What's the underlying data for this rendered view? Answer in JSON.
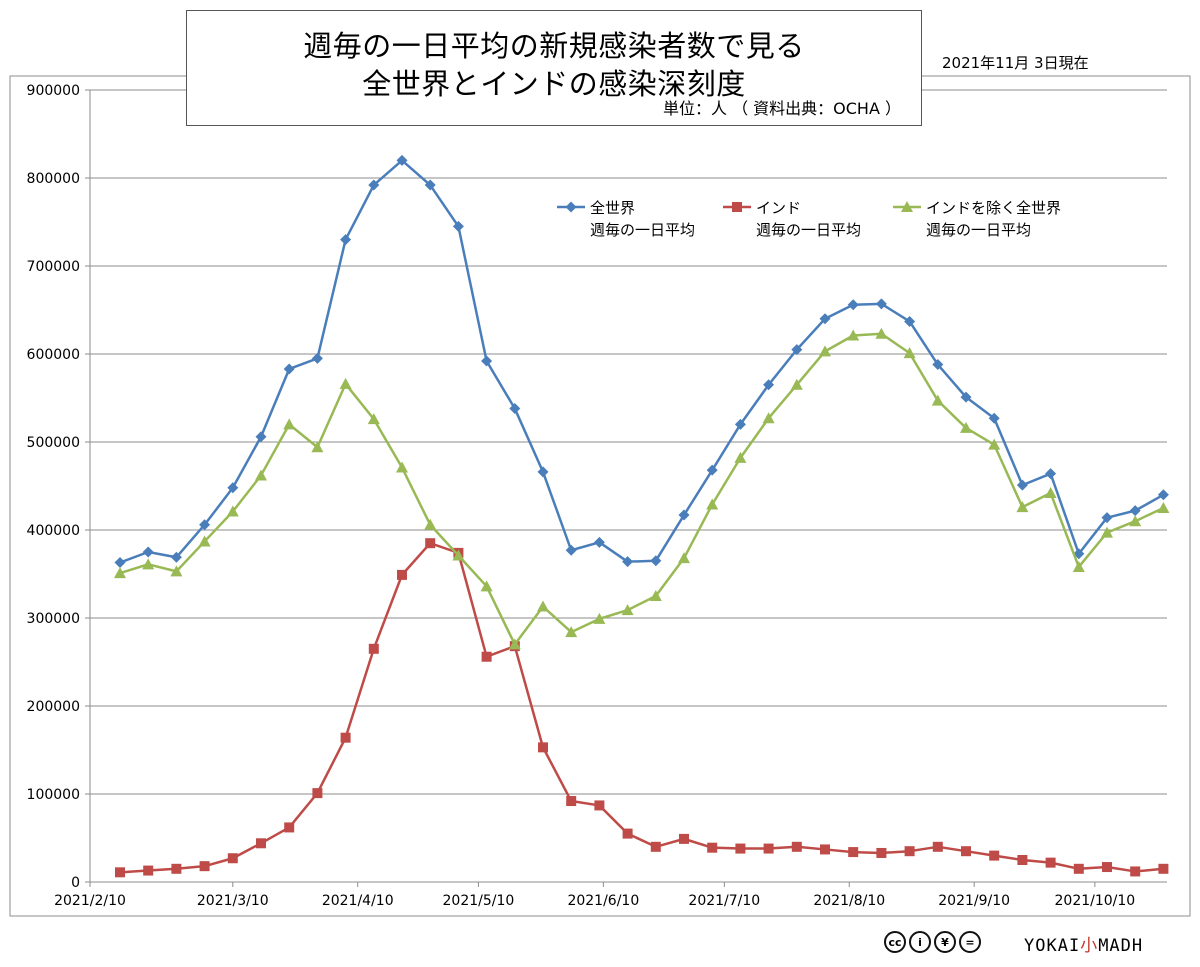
{
  "title": {
    "line1": "週毎の一日平均の新規感染者数で見る",
    "line2": "全世界とインドの感染深刻度",
    "unit": "単位：人 （ 資料出典：OCHA ）"
  },
  "date_note": "2021年11月 3日現在",
  "footer": {
    "license_icons": [
      "cc-icon",
      "by-icon",
      "nc-icon",
      "nd-icon"
    ],
    "license_glyphs": [
      "cc",
      "i",
      "¥",
      "="
    ],
    "brand_left": "YOKAI",
    "brand_mid": "小",
    "brand_right": "MADH"
  },
  "chart_data": {
    "type": "line",
    "x_start": "2021/2/10",
    "x_step_days": 7,
    "x_tick_labels": [
      "2021/2/10",
      "2021/3/10",
      "2021/4/10",
      "2021/5/10",
      "2021/6/10",
      "2021/7/10",
      "2021/8/10",
      "2021/9/10",
      "2021/10/10"
    ],
    "x_tick_index": [
      0,
      4,
      8.43,
      12.71,
      17.14,
      21.43,
      25.86,
      30.29,
      34.57
    ],
    "y_ticks": [
      0,
      100000,
      200000,
      300000,
      400000,
      500000,
      600000,
      700000,
      800000,
      900000
    ],
    "ylim": [
      0,
      900000
    ],
    "grid": true,
    "legend_placement": "top-right",
    "series": [
      {
        "name": "全世界",
        "name_sub": "週毎の一日平均",
        "color": "#4a7ebb",
        "marker": "diamond",
        "values": [
          363000,
          375000,
          369000,
          406000,
          448000,
          506000,
          583000,
          595000,
          730000,
          792000,
          820000,
          792000,
          745000,
          592000,
          538000,
          466000,
          377000,
          386000,
          364000,
          365000,
          417000,
          468000,
          520000,
          565000,
          605000,
          640000,
          656000,
          657000,
          637000,
          588000,
          551000,
          527000,
          451000,
          464000,
          373000,
          414000,
          422000,
          440000
        ]
      },
      {
        "name": "インド",
        "name_sub": "週毎の一日平均",
        "color": "#be4b48",
        "marker": "square",
        "values": [
          11000,
          13000,
          15000,
          18000,
          27000,
          44000,
          62000,
          101000,
          164000,
          265000,
          349000,
          385000,
          374000,
          256000,
          268000,
          153000,
          92000,
          87000,
          55000,
          40000,
          49000,
          39000,
          38000,
          38000,
          40000,
          37000,
          34000,
          33000,
          35000,
          40000,
          35000,
          30000,
          25000,
          22000,
          15000,
          17000,
          12000,
          15000
        ]
      },
      {
        "name": "インドを除く全世界",
        "name_sub": "週毎の一日平均",
        "color": "#98b954",
        "marker": "triangle",
        "values": [
          351000,
          361000,
          353000,
          387000,
          421000,
          462000,
          520000,
          494000,
          566000,
          526000,
          471000,
          406000,
          371000,
          336000,
          270000,
          313000,
          284000,
          299000,
          309000,
          325000,
          368000,
          429000,
          482000,
          527000,
          565000,
          603000,
          621000,
          623000,
          601000,
          547000,
          516000,
          497000,
          426000,
          442000,
          358000,
          397000,
          410000,
          425000
        ]
      }
    ]
  }
}
